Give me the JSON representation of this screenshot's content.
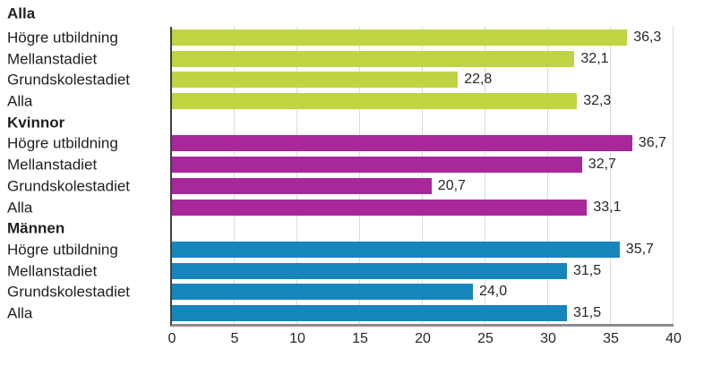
{
  "chart_data": {
    "type": "bar",
    "orientation": "horizontal",
    "title": "",
    "xlabel": "",
    "ylabel": "",
    "x_axis": {
      "min": 0,
      "max": 40,
      "tick_labels": [
        "0",
        "5",
        "10",
        "15",
        "20",
        "25",
        "30",
        "35",
        "40"
      ],
      "tick_values": [
        0,
        5,
        10,
        15,
        20,
        25,
        30,
        35,
        40
      ]
    },
    "grid": "vertical-on",
    "legend": "none",
    "decimal_separator": ",",
    "groups": [
      {
        "name": "Alla",
        "color": "#c0d343",
        "rows": [
          {
            "label": "Högre utbildning",
            "value": 36.3,
            "value_text": "36,3"
          },
          {
            "label": "Mellanstadiet",
            "value": 32.1,
            "value_text": "32,1"
          },
          {
            "label": "Grundskolestadiet",
            "value": 22.8,
            "value_text": "22,8"
          },
          {
            "label": "Alla",
            "value": 32.3,
            "value_text": "32,3"
          }
        ]
      },
      {
        "name": "Kvinnor",
        "color": "#a8289a",
        "rows": [
          {
            "label": "Högre utbildning",
            "value": 36.7,
            "value_text": "36,7"
          },
          {
            "label": "Mellanstadiet",
            "value": 32.7,
            "value_text": "32,7"
          },
          {
            "label": "Grundskolestadiet",
            "value": 20.7,
            "value_text": "20,7"
          },
          {
            "label": "Alla",
            "value": 33.1,
            "value_text": "33,1"
          }
        ]
      },
      {
        "name": "Männen",
        "color": "#1686bd",
        "rows": [
          {
            "label": "Högre utbildning",
            "value": 35.7,
            "value_text": "35,7"
          },
          {
            "label": "Mellanstadiet",
            "value": 31.5,
            "value_text": "31,5"
          },
          {
            "label": "Grundskolestadiet",
            "value": 24.0,
            "value_text": "24,0"
          },
          {
            "label": "Alla",
            "value": 31.5,
            "value_text": "31,5"
          }
        ]
      }
    ],
    "colors": {
      "gridline": "#d9d9d9",
      "y_axis_line": "#404040",
      "x_axis_line": "#8c8c8c",
      "text": "#1f1f1f"
    }
  }
}
